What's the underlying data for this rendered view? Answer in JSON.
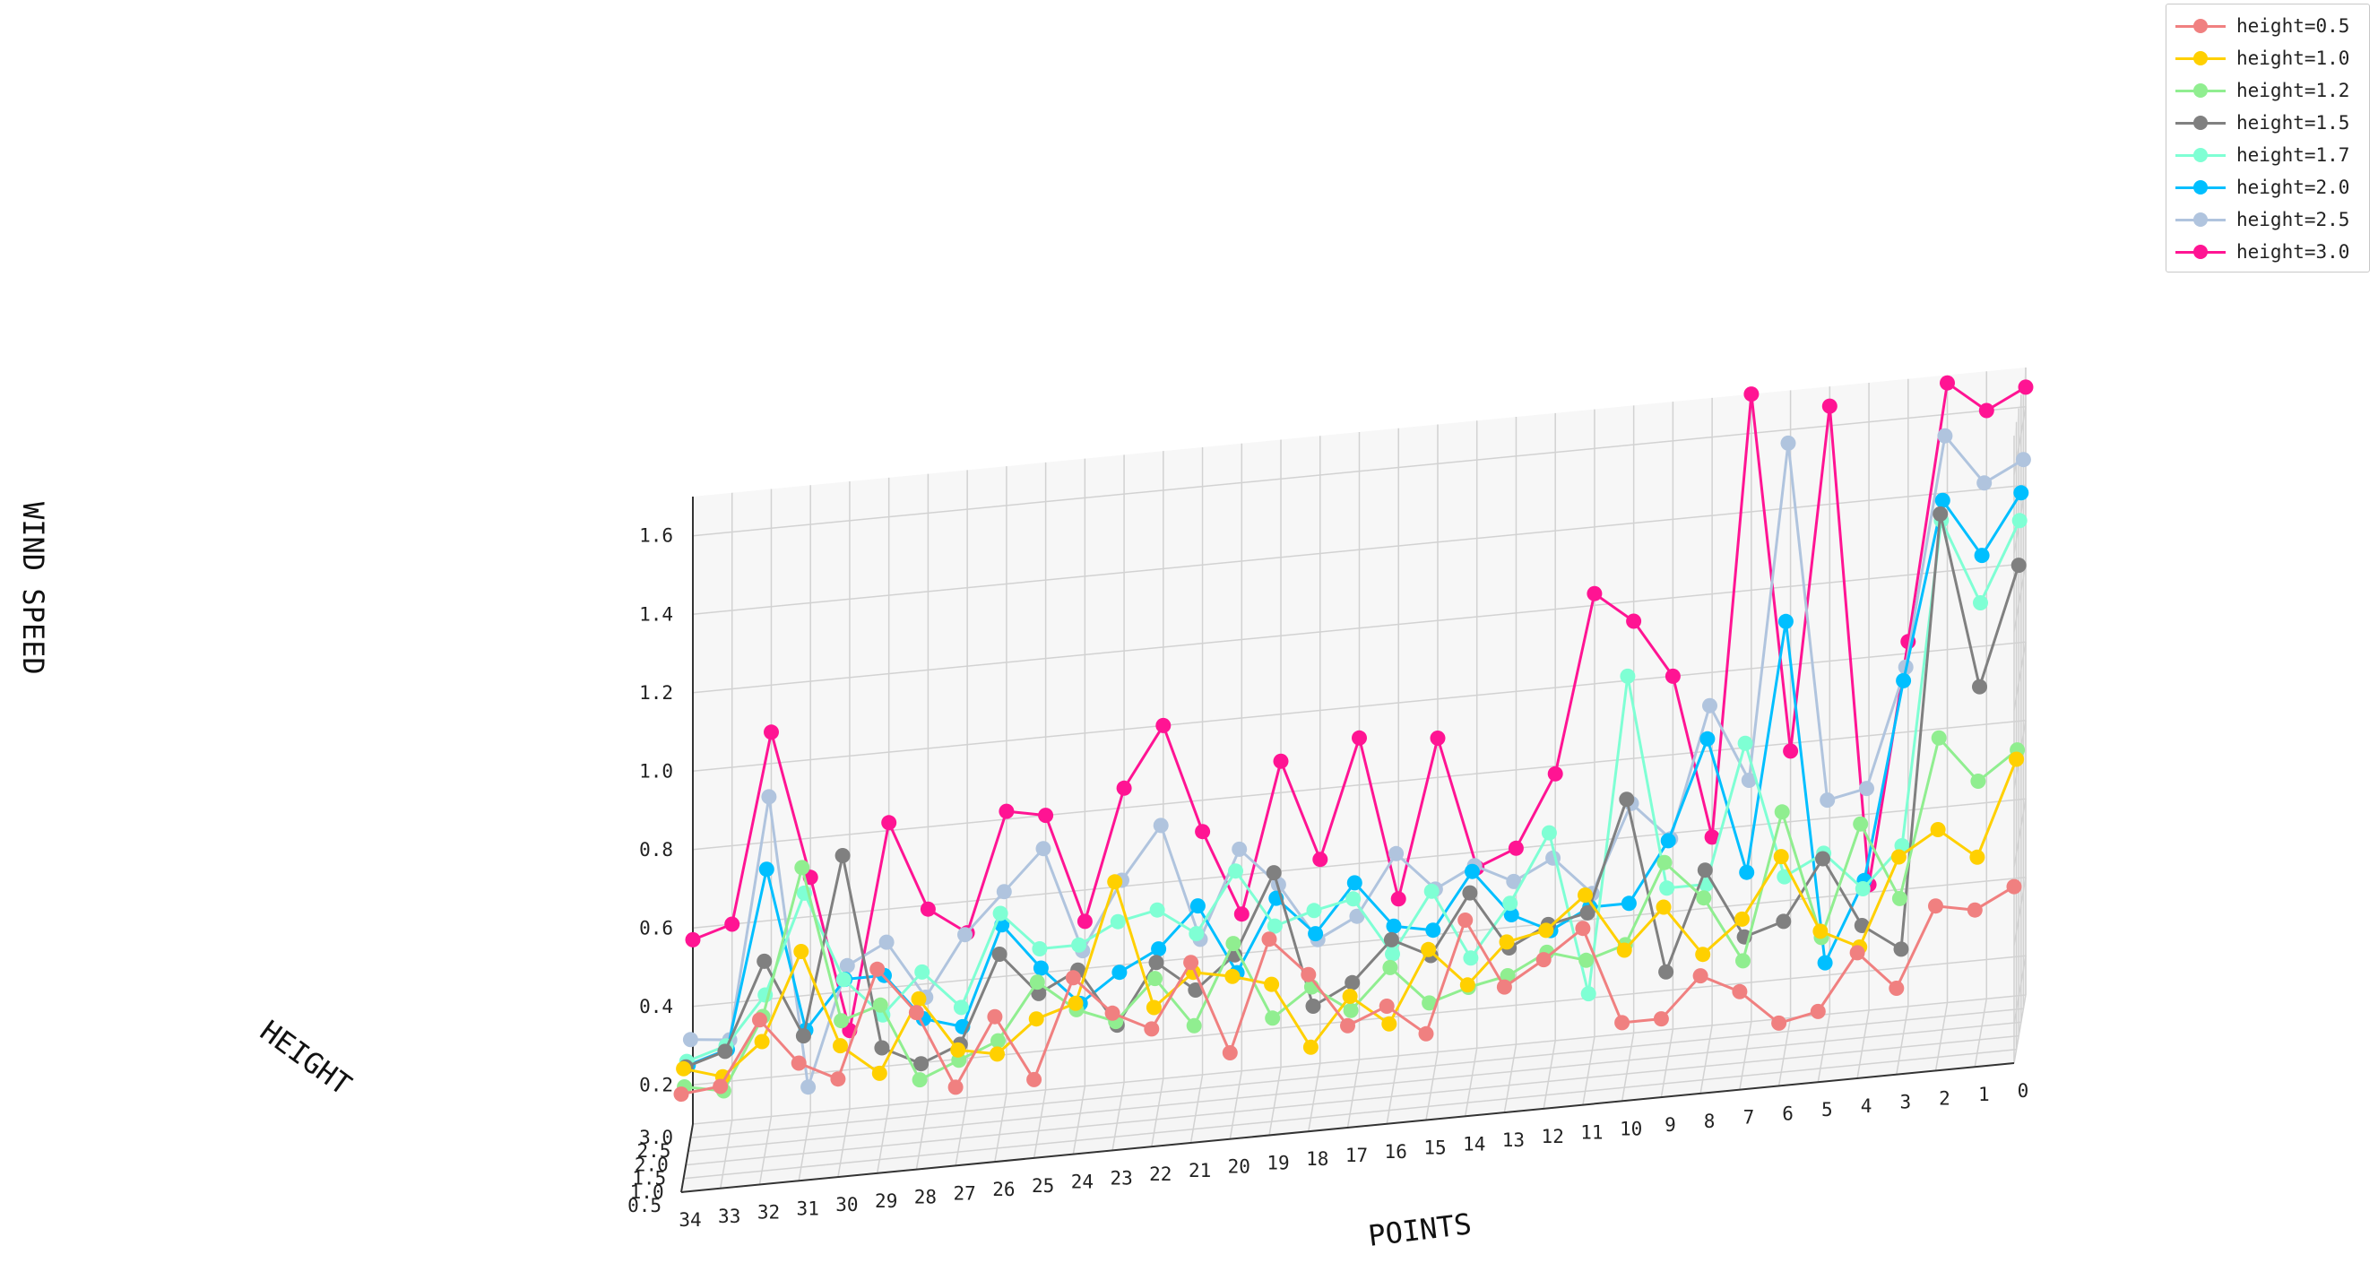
{
  "chart_data": {
    "type": "line",
    "projection": "3d",
    "title": "",
    "xlabel": "POINTS",
    "ylabel": "HEIGHT",
    "zlabel": "WIND SPEED",
    "points": [
      0,
      1,
      2,
      3,
      4,
      5,
      6,
      7,
      8,
      9,
      10,
      11,
      12,
      13,
      14,
      15,
      16,
      17,
      18,
      19,
      20,
      21,
      22,
      23,
      24,
      25,
      26,
      27,
      28,
      29,
      30,
      31,
      32,
      33,
      34
    ],
    "points_tick_labels": [
      "0",
      "1",
      "2",
      "3",
      "4",
      "5",
      "6",
      "7",
      "8",
      "9",
      "10",
      "11",
      "12",
      "13",
      "14",
      "15",
      "16",
      "17",
      "18",
      "19",
      "20",
      "21",
      "22",
      "23",
      "24",
      "25",
      "26",
      "27",
      "28",
      "29",
      "30",
      "31",
      "32",
      "33",
      "34"
    ],
    "height_ticks": [
      0.5,
      1.0,
      1.5,
      2.0,
      2.5,
      3.0
    ],
    "height_tick_labels": [
      "0.5",
      "1.0",
      "1.5",
      "2.0",
      "2.5",
      "3.0"
    ],
    "wind_ticks": [
      0.2,
      0.4,
      0.6,
      0.8,
      1.0,
      1.2,
      1.4,
      1.6
    ],
    "wind_tick_labels": [
      "0.2",
      "0.4",
      "0.6",
      "0.8",
      "1.0",
      "1.2",
      "1.4",
      "1.6"
    ],
    "zlim": [
      0.1,
      1.7
    ],
    "grid": true,
    "legend_position": "top-right",
    "series": [
      {
        "name": "height=0.5",
        "height": 0.5,
        "color": "#F08080",
        "values": [
          0.55,
          0.5,
          0.52,
          0.32,
          0.42,
          0.28,
          0.26,
          0.35,
          0.4,
          0.3,
          0.3,
          0.55,
          0.48,
          0.42,
          0.6,
          0.32,
          0.4,
          0.36,
          0.5,
          0.6,
          0.32,
          0.56,
          0.4,
          0.45,
          0.55,
          0.3,
          0.47,
          0.3,
          0.5,
          0.62,
          0.35,
          0.4,
          0.52,
          0.36,
          0.35
        ]
      },
      {
        "name": "height=1.0",
        "height": 1.0,
        "color": "#FFD000",
        "values": [
          0.84,
          0.6,
          0.68,
          0.62,
          0.4,
          0.45,
          0.65,
          0.5,
          0.42,
          0.55,
          0.45,
          0.6,
          0.52,
          0.5,
          0.4,
          0.5,
          0.32,
          0.4,
          0.28,
          0.45,
          0.48,
          0.5,
          0.42,
          0.75,
          0.45,
          0.42,
          0.34,
          0.36,
          0.5,
          0.32,
          0.4,
          0.65,
          0.43,
          0.35,
          0.38
        ]
      },
      {
        "name": "height=1.2",
        "height": 1.2,
        "color": "#90EE90",
        "values": [
          0.85,
          0.78,
          0.9,
          0.5,
          0.7,
          0.42,
          0.75,
          0.38,
          0.55,
          0.65,
          0.45,
          0.42,
          0.45,
          0.4,
          0.38,
          0.35,
          0.45,
          0.35,
          0.42,
          0.35,
          0.55,
          0.35,
          0.48,
          0.38,
          0.42,
          0.5,
          0.36,
          0.32,
          0.28,
          0.48,
          0.45,
          0.85,
          0.48,
          0.3,
          0.32
        ]
      },
      {
        "name": "height=1.5",
        "height": 1.5,
        "color": "#808080",
        "values": [
          1.3,
          1.0,
          1.45,
          0.35,
          0.42,
          0.6,
          0.45,
          0.42,
          0.6,
          0.35,
          0.8,
          0.52,
          0.5,
          0.45,
          0.6,
          0.45,
          0.5,
          0.4,
          0.35,
          0.7,
          0.5,
          0.42,
          0.5,
          0.35,
          0.5,
          0.45,
          0.56,
          0.34,
          0.3,
          0.35,
          0.85,
          0.4,
          0.6,
          0.38,
          0.35
        ]
      },
      {
        "name": "height=1.7",
        "height": 1.7,
        "color": "#7FFFD4",
        "values": [
          1.4,
          1.2,
          1.42,
          0.6,
          0.5,
          0.6,
          0.55,
          0.9,
          0.55,
          0.55,
          1.1,
          0.3,
          0.72,
          0.55,
          0.42,
          0.6,
          0.45,
          0.6,
          0.58,
          0.55,
          0.7,
          0.55,
          0.62,
          0.6,
          0.55,
          0.55,
          0.65,
          0.42,
          0.52,
          0.42,
          0.52,
          0.75,
          0.5,
          0.38,
          0.35
        ]
      },
      {
        "name": "height=2.0",
        "height": 2.0,
        "color": "#00BFFF",
        "values": [
          1.45,
          1.3,
          1.45,
          1.0,
          0.5,
          0.3,
          1.18,
          0.55,
          0.9,
          0.65,
          0.5,
          0.5,
          0.45,
          0.5,
          0.62,
          0.48,
          0.5,
          0.62,
          0.5,
          0.6,
          0.42,
          0.6,
          0.5,
          0.45,
          0.38,
          0.48,
          0.6,
          0.35,
          0.38,
          0.5,
          0.5,
          0.38,
          0.8,
          0.35,
          0.32
        ]
      },
      {
        "name": "height=2.5",
        "height": 2.5,
        "color": "#B0C4DE",
        "values": [
          1.5,
          1.45,
          1.58,
          1.0,
          0.7,
          0.68,
          1.6,
          0.75,
          0.95,
          0.62,
          0.72,
          0.5,
          0.6,
          0.55,
          0.6,
          0.55,
          0.65,
          0.5,
          0.45,
          0.6,
          0.7,
          0.48,
          0.78,
          0.65,
          0.48,
          0.75,
          0.65,
          0.55,
          0.4,
          0.55,
          0.5,
          0.2,
          0.95,
          0.34,
          0.35
        ]
      },
      {
        "name": "height=3.0",
        "height": 3.0,
        "color": "#FF1493",
        "values": [
          1.65,
          1.6,
          1.68,
          1.03,
          0.42,
          1.65,
          0.78,
          1.7,
          0.58,
          1.0,
          1.15,
          1.23,
          0.78,
          0.6,
          0.56,
          0.9,
          0.5,
          0.92,
          0.62,
          0.88,
          0.5,
          0.72,
          1.0,
          0.85,
          0.52,
          0.8,
          0.82,
          0.52,
          0.59,
          0.82,
          0.3,
          0.7,
          1.08,
          0.6,
          0.57
        ]
      }
    ]
  }
}
